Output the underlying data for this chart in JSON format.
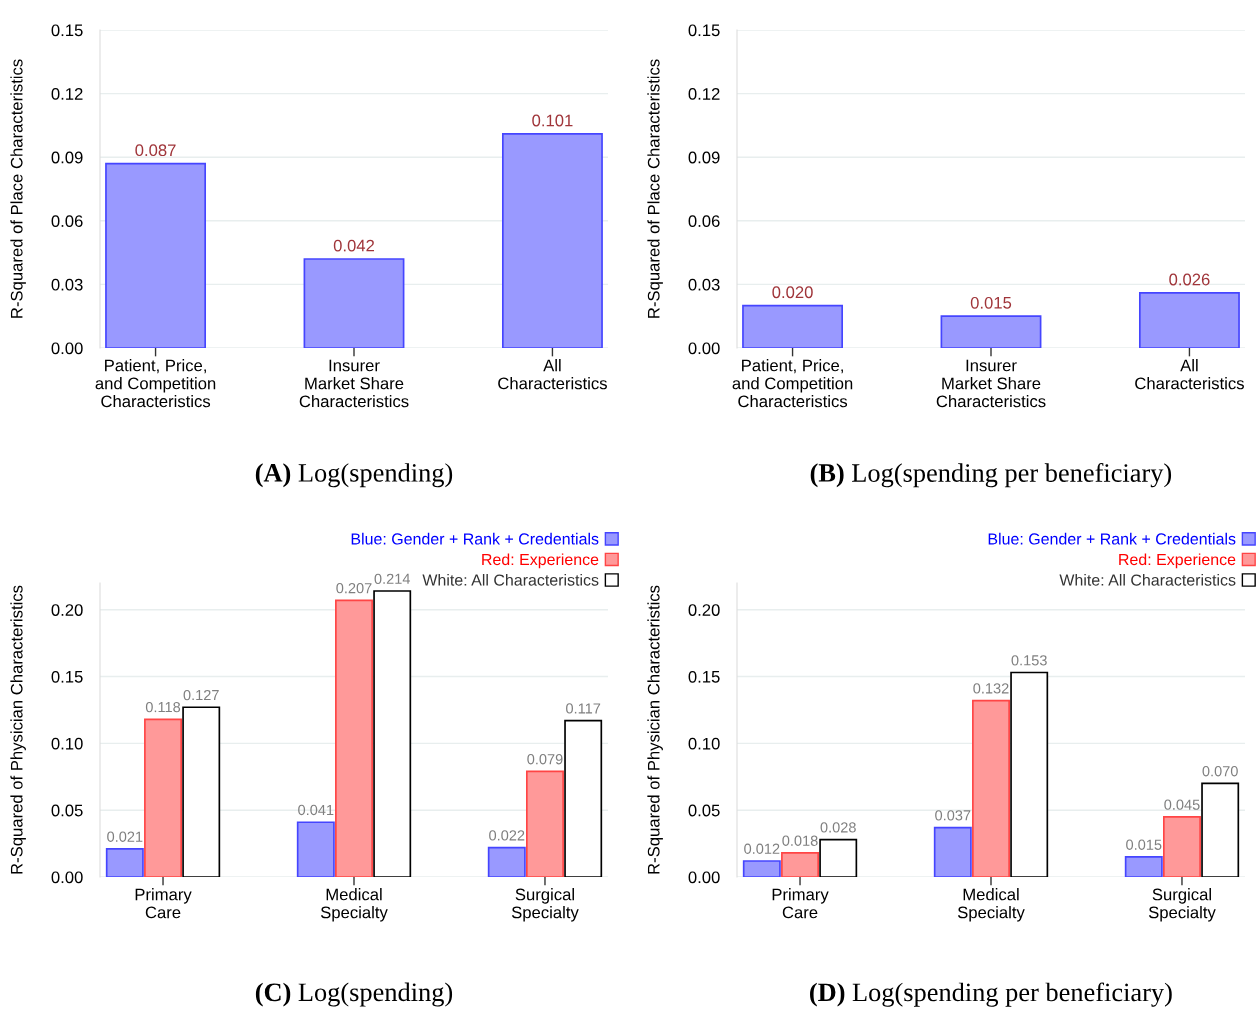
{
  "chart_data": [
    {
      "type": "bar",
      "title": "(A) Log(spending)",
      "ylabel": "R-Squared of Place Characteristics",
      "categories": [
        "Patient, Price,\nand Competition\nCharacteristics",
        "Insurer\nMarket Share\nCharacteristics",
        "All\nCharacteristics"
      ],
      "values": [
        0.087,
        0.042,
        0.101
      ],
      "value_labels": [
        "0.087",
        "0.042",
        "0.101"
      ],
      "color": "#9999ff",
      "ylim": [
        0,
        0.15
      ],
      "yticks": [
        {
          "value": 0,
          "label": "0.00"
        },
        0.03,
        0.06,
        0.09,
        0.12,
        0.15
      ],
      "grid": "y"
    },
    {
      "type": "bar",
      "title": "(B) Log(spending per beneficiary)",
      "ylabel": "R-Squared of Place Characteristics",
      "categories": [
        "Patient, Price,\nand Competition\nCharacteristics",
        "Insurer\nMarket Share\nCharacteristics",
        "All\nCharacteristics"
      ],
      "values": [
        0.02,
        0.015,
        0.026
      ],
      "value_labels": [
        "0.020",
        "0.015",
        "0.026"
      ],
      "color": "#9999ff",
      "ylim": [
        0,
        0.15
      ],
      "yticks": [
        {
          "value": 0,
          "label": "0.00"
        },
        0.03,
        0.06,
        0.09,
        0.12,
        0.15
      ],
      "grid": "y"
    },
    {
      "type": "bar",
      "title": "(C) Log(spending)",
      "ylabel": "R-Squared of Physician Characteristics",
      "categories": [
        "Primary\nCare",
        "Medical\nSpecialty",
        "Surgical\nSpecialty"
      ],
      "series": [
        {
          "name": "Blue: Gender + Rank + Credentials",
          "color": "#9999ff",
          "values": [
            0.021,
            0.041,
            0.022
          ],
          "value_labels": [
            "0.021",
            "0.041",
            "0.022"
          ]
        },
        {
          "name": "Red: Experience",
          "color": "#ff9999",
          "values": [
            0.118,
            0.207,
            0.079
          ],
          "value_labels": [
            "0.118",
            "0.207",
            "0.079"
          ]
        },
        {
          "name": "White: All Characteristics",
          "color": "#ffffff",
          "values": [
            0.127,
            0.214,
            0.117
          ],
          "value_labels": [
            "0.127",
            "0.214",
            "0.117"
          ]
        }
      ],
      "ylim": [
        0,
        0.22
      ],
      "yticks": [
        {
          "value": 0,
          "label": "0.00"
        },
        0.05,
        {
          "value": 0.1,
          "label": "0.10"
        },
        0.15,
        {
          "value": 0.2,
          "label": "0.20"
        }
      ],
      "grid": "y",
      "legend": "top right"
    },
    {
      "type": "bar",
      "title": "(D) Log(spending per beneficiary)",
      "ylabel": "R-Squared of Physician Characteristics",
      "categories": [
        "Primary\nCare",
        "Medical\nSpecialty",
        "Surgical\nSpecialty"
      ],
      "series": [
        {
          "name": "Blue: Gender + Rank + Credentials",
          "color": "#9999ff",
          "values": [
            0.012,
            0.037,
            0.015
          ],
          "value_labels": [
            "0.012",
            "0.037",
            "0.015"
          ]
        },
        {
          "name": "Red: Experience",
          "color": "#ff9999",
          "values": [
            0.018,
            0.132,
            0.045
          ],
          "value_labels": [
            "0.018",
            "0.132",
            "0.045"
          ]
        },
        {
          "name": "White: All Characteristics",
          "color": "#ffffff",
          "values": [
            0.028,
            0.153,
            0.07
          ],
          "value_labels": [
            "0.028",
            "0.153",
            "0.070"
          ]
        }
      ],
      "ylim": [
        0,
        0.22
      ],
      "yticks": [
        {
          "value": 0,
          "label": "0.00"
        },
        0.05,
        {
          "value": 0.1,
          "label": "0.10"
        },
        0.15,
        {
          "value": 0.2,
          "label": "0.20"
        }
      ],
      "grid": "y",
      "legend": "top right"
    }
  ]
}
